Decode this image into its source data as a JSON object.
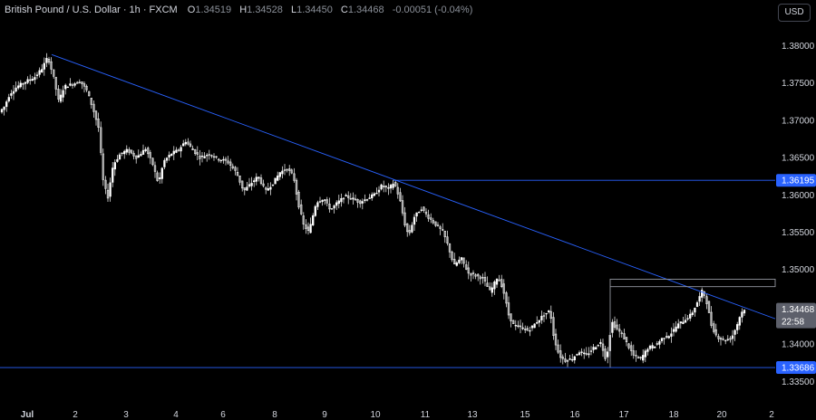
{
  "header": {
    "symbol_name": "British Pound / U.S. Dollar · 1h · FXCM",
    "open_label": "O",
    "open_value": "1.34519",
    "high_label": "H",
    "high_value": "1.34528",
    "low_label": "L",
    "low_value": "1.34450",
    "close_label": "C",
    "close_value": "1.34468",
    "change_value": "-0.00051 (-0.04%)"
  },
  "currency_button": "USD",
  "price_tags": {
    "resistance": "1.36195",
    "current": "1.34468",
    "countdown": "22:58",
    "support": "1.33686"
  },
  "colors": {
    "background": "#000000",
    "candle": "#ffffff",
    "trendline": "#2962ff",
    "horizontal_line": "#2962ff",
    "tag_blue": "#2962ff",
    "tag_current": "#5d606b",
    "zone": "#9598a1"
  },
  "chart_data": {
    "type": "candlestick",
    "title": "British Pound / U.S. Dollar · 1h · FXCM",
    "y_ticks": [
      "1.38000",
      "1.37500",
      "1.37000",
      "1.36500",
      "1.36000",
      "1.35500",
      "1.35000",
      "1.34500",
      "1.34000",
      "1.33500"
    ],
    "x_ticks": [
      "Jul",
      "2",
      "3",
      "4",
      "6",
      "8",
      "9",
      "10",
      "11",
      "13",
      "15",
      "16",
      "17",
      "18",
      "20",
      "2"
    ],
    "ylim": [
      1.3325,
      1.3832
    ],
    "price_path": [
      {
        "x": 0,
        "p": 1.371
      },
      {
        "x": 6,
        "p": 1.3718
      },
      {
        "x": 12,
        "p": 1.3735
      },
      {
        "x": 20,
        "p": 1.3745
      },
      {
        "x": 30,
        "p": 1.3752
      },
      {
        "x": 40,
        "p": 1.3758
      },
      {
        "x": 48,
        "p": 1.377
      },
      {
        "x": 54,
        "p": 1.3785
      },
      {
        "x": 60,
        "p": 1.376
      },
      {
        "x": 66,
        "p": 1.3725
      },
      {
        "x": 72,
        "p": 1.3745
      },
      {
        "x": 80,
        "p": 1.3748
      },
      {
        "x": 90,
        "p": 1.3752
      },
      {
        "x": 97,
        "p": 1.374
      },
      {
        "x": 104,
        "p": 1.3715
      },
      {
        "x": 110,
        "p": 1.369
      },
      {
        "x": 115,
        "p": 1.362
      },
      {
        "x": 120,
        "p": 1.3595
      },
      {
        "x": 126,
        "p": 1.364
      },
      {
        "x": 134,
        "p": 1.3655
      },
      {
        "x": 142,
        "p": 1.366
      },
      {
        "x": 152,
        "p": 1.365
      },
      {
        "x": 162,
        "p": 1.3662
      },
      {
        "x": 170,
        "p": 1.364
      },
      {
        "x": 176,
        "p": 1.3615
      },
      {
        "x": 182,
        "p": 1.3645
      },
      {
        "x": 190,
        "p": 1.3655
      },
      {
        "x": 198,
        "p": 1.366
      },
      {
        "x": 206,
        "p": 1.3672
      },
      {
        "x": 214,
        "p": 1.366
      },
      {
        "x": 222,
        "p": 1.365
      },
      {
        "x": 232,
        "p": 1.3655
      },
      {
        "x": 242,
        "p": 1.3648
      },
      {
        "x": 252,
        "p": 1.3645
      },
      {
        "x": 262,
        "p": 1.363
      },
      {
        "x": 270,
        "p": 1.3605
      },
      {
        "x": 278,
        "p": 1.3615
      },
      {
        "x": 286,
        "p": 1.3625
      },
      {
        "x": 294,
        "p": 1.3605
      },
      {
        "x": 302,
        "p": 1.3615
      },
      {
        "x": 310,
        "p": 1.363
      },
      {
        "x": 318,
        "p": 1.3635
      },
      {
        "x": 325,
        "p": 1.3625
      },
      {
        "x": 330,
        "p": 1.359
      },
      {
        "x": 336,
        "p": 1.356
      },
      {
        "x": 342,
        "p": 1.355
      },
      {
        "x": 350,
        "p": 1.359
      },
      {
        "x": 358,
        "p": 1.3595
      },
      {
        "x": 366,
        "p": 1.358
      },
      {
        "x": 374,
        "p": 1.359
      },
      {
        "x": 382,
        "p": 1.3598
      },
      {
        "x": 390,
        "p": 1.3595
      },
      {
        "x": 398,
        "p": 1.359
      },
      {
        "x": 406,
        "p": 1.3595
      },
      {
        "x": 414,
        "p": 1.36
      },
      {
        "x": 422,
        "p": 1.3612
      },
      {
        "x": 430,
        "p": 1.3608
      },
      {
        "x": 436,
        "p": 1.3617
      },
      {
        "x": 442,
        "p": 1.3595
      },
      {
        "x": 448,
        "p": 1.356
      },
      {
        "x": 452,
        "p": 1.3545
      },
      {
        "x": 458,
        "p": 1.357
      },
      {
        "x": 466,
        "p": 1.3582
      },
      {
        "x": 474,
        "p": 1.357
      },
      {
        "x": 482,
        "p": 1.356
      },
      {
        "x": 490,
        "p": 1.355
      },
      {
        "x": 496,
        "p": 1.353
      },
      {
        "x": 502,
        "p": 1.3505
      },
      {
        "x": 510,
        "p": 1.3515
      },
      {
        "x": 518,
        "p": 1.3495
      },
      {
        "x": 526,
        "p": 1.3492
      },
      {
        "x": 534,
        "p": 1.3488
      },
      {
        "x": 542,
        "p": 1.347
      },
      {
        "x": 550,
        "p": 1.349
      },
      {
        "x": 556,
        "p": 1.3475
      },
      {
        "x": 562,
        "p": 1.344
      },
      {
        "x": 568,
        "p": 1.3425
      },
      {
        "x": 576,
        "p": 1.3422
      },
      {
        "x": 584,
        "p": 1.3418
      },
      {
        "x": 592,
        "p": 1.3428
      },
      {
        "x": 600,
        "p": 1.3438
      },
      {
        "x": 608,
        "p": 1.3445
      },
      {
        "x": 612,
        "p": 1.341
      },
      {
        "x": 618,
        "p": 1.3385
      },
      {
        "x": 624,
        "p": 1.3378
      },
      {
        "x": 632,
        "p": 1.338
      },
      {
        "x": 640,
        "p": 1.339
      },
      {
        "x": 648,
        "p": 1.3385
      },
      {
        "x": 656,
        "p": 1.3395
      },
      {
        "x": 664,
        "p": 1.3402
      },
      {
        "x": 670,
        "p": 1.3378
      },
      {
        "x": 676,
        "p": 1.343
      },
      {
        "x": 682,
        "p": 1.342
      },
      {
        "x": 688,
        "p": 1.3412
      },
      {
        "x": 694,
        "p": 1.3398
      },
      {
        "x": 700,
        "p": 1.3385
      },
      {
        "x": 708,
        "p": 1.338
      },
      {
        "x": 716,
        "p": 1.3395
      },
      {
        "x": 724,
        "p": 1.3398
      },
      {
        "x": 732,
        "p": 1.3408
      },
      {
        "x": 740,
        "p": 1.3412
      },
      {
        "x": 748,
        "p": 1.3425
      },
      {
        "x": 756,
        "p": 1.3432
      },
      {
        "x": 764,
        "p": 1.344
      },
      {
        "x": 770,
        "p": 1.3455
      },
      {
        "x": 776,
        "p": 1.3472
      },
      {
        "x": 780,
        "p": 1.346
      },
      {
        "x": 786,
        "p": 1.3425
      },
      {
        "x": 792,
        "p": 1.341
      },
      {
        "x": 800,
        "p": 1.3405
      },
      {
        "x": 808,
        "p": 1.3408
      },
      {
        "x": 814,
        "p": 1.3425
      },
      {
        "x": 818,
        "p": 1.344
      },
      {
        "x": 822,
        "p": 1.3447
      }
    ],
    "trendline": {
      "start": {
        "x": 57,
        "p": 1.3788
      },
      "end": {
        "x": 855,
        "p": 1.3434
      }
    },
    "resistance_level": {
      "p": 1.36195,
      "start_x": 434
    },
    "support_level": {
      "p": 1.33686
    },
    "zone": {
      "p_top": 1.3487,
      "p_bottom": 1.3477,
      "start_x": 673,
      "end_x": 855
    }
  }
}
